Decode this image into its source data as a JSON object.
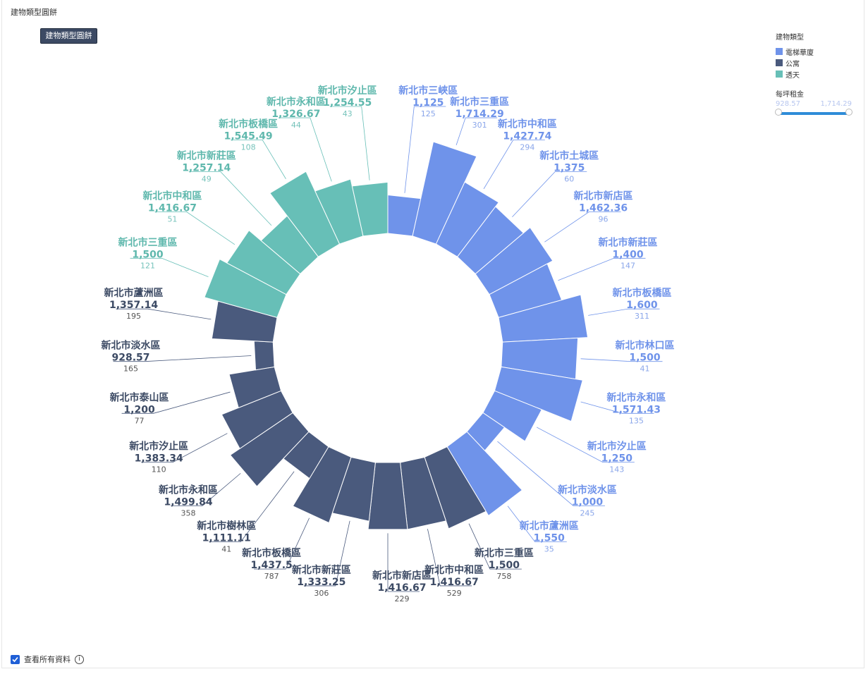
{
  "page_title": "建物類型圓餅",
  "button_label": "建物類型圓餅",
  "legend": {
    "title": "建物類型",
    "items": [
      {
        "label": "電梯華廈",
        "color": "#6f93ea"
      },
      {
        "label": "公寓",
        "color": "#4a5a7d"
      },
      {
        "label": "透天",
        "color": "#67bfb7"
      }
    ],
    "size_title": "每坪租金",
    "size_min": "928.57",
    "size_max": "1,714.29"
  },
  "footer": {
    "checkbox_label": "查看所有資料",
    "checked": true
  },
  "chart_data": {
    "type": "radial-bar",
    "title": "建物類型圓餅",
    "value_field": "每坪租金",
    "color_field": "建物類型",
    "size_range": [
      928.57,
      1714.29
    ],
    "series": [
      {
        "name": "電梯華廈",
        "color": "#6f93ea",
        "label_color": "#6f93ea",
        "sub_color": "#8aa6ea",
        "points": [
          {
            "district": "新北市三峽區",
            "value": "1,125",
            "count": "125"
          },
          {
            "district": "新北市三重區",
            "value": "1,714.29",
            "count": "301"
          },
          {
            "district": "新北市中和區",
            "value": "1,427.74",
            "count": "294"
          },
          {
            "district": "新北市土城區",
            "value": "1,375",
            "count": "60"
          },
          {
            "district": "新北市新店區",
            "value": "1,462.36",
            "count": "96"
          },
          {
            "district": "新北市新莊區",
            "value": "1,400",
            "count": "147"
          },
          {
            "district": "新北市板橋區",
            "value": "1,600",
            "count": "311"
          },
          {
            "district": "新北市林口區",
            "value": "1,500",
            "count": "41"
          },
          {
            "district": "新北市永和區",
            "value": "1,571.43",
            "count": "135"
          },
          {
            "district": "新北市汐止區",
            "value": "1,250",
            "count": "143"
          },
          {
            "district": "新北市淡水區",
            "value": "1,000",
            "count": "245"
          },
          {
            "district": "新北市蘆洲區",
            "value": "1,550",
            "count": "35"
          }
        ]
      },
      {
        "name": "公寓",
        "color": "#4a5a7d",
        "label_color": "#3c4a64",
        "sub_color": "#555",
        "points": [
          {
            "district": "新北市三重區",
            "value": "1,500",
            "count": "758"
          },
          {
            "district": "新北市中和區",
            "value": "1,416.67",
            "count": "529"
          },
          {
            "district": "新北市新店區",
            "value": "1,416.67",
            "count": "229"
          },
          {
            "district": "新北市新莊區",
            "value": "1,333.25",
            "count": "306"
          },
          {
            "district": "新北市板橋區",
            "value": "1,437.5",
            "count": "787"
          },
          {
            "district": "新北市樹林區",
            "value": "1,111.11",
            "count": "41"
          },
          {
            "district": "新北市永和區",
            "value": "1,499.84",
            "count": "358"
          },
          {
            "district": "新北市汐止區",
            "value": "1,383.34",
            "count": "110"
          },
          {
            "district": "新北市泰山區",
            "value": "1,200",
            "count": "77"
          },
          {
            "district": "新北市淡水區",
            "value": "928.57",
            "count": "165"
          },
          {
            "district": "新北市蘆洲區",
            "value": "1,357.14",
            "count": "195"
          }
        ]
      },
      {
        "name": "透天",
        "color": "#67bfb7",
        "label_color": "#5fb8ad",
        "sub_color": "#76c3bb",
        "points": [
          {
            "district": "新北市三重區",
            "value": "1,500",
            "count": "121"
          },
          {
            "district": "新北市中和區",
            "value": "1,416.67",
            "count": "51"
          },
          {
            "district": "新北市新莊區",
            "value": "1,257.14",
            "count": "49"
          },
          {
            "district": "新北市板橋區",
            "value": "1,545.49",
            "count": "108"
          },
          {
            "district": "新北市永和區",
            "value": "1,326.67",
            "count": "44"
          },
          {
            "district": "新北市汐止區",
            "value": "1,254.55",
            "count": "43"
          }
        ]
      }
    ]
  }
}
